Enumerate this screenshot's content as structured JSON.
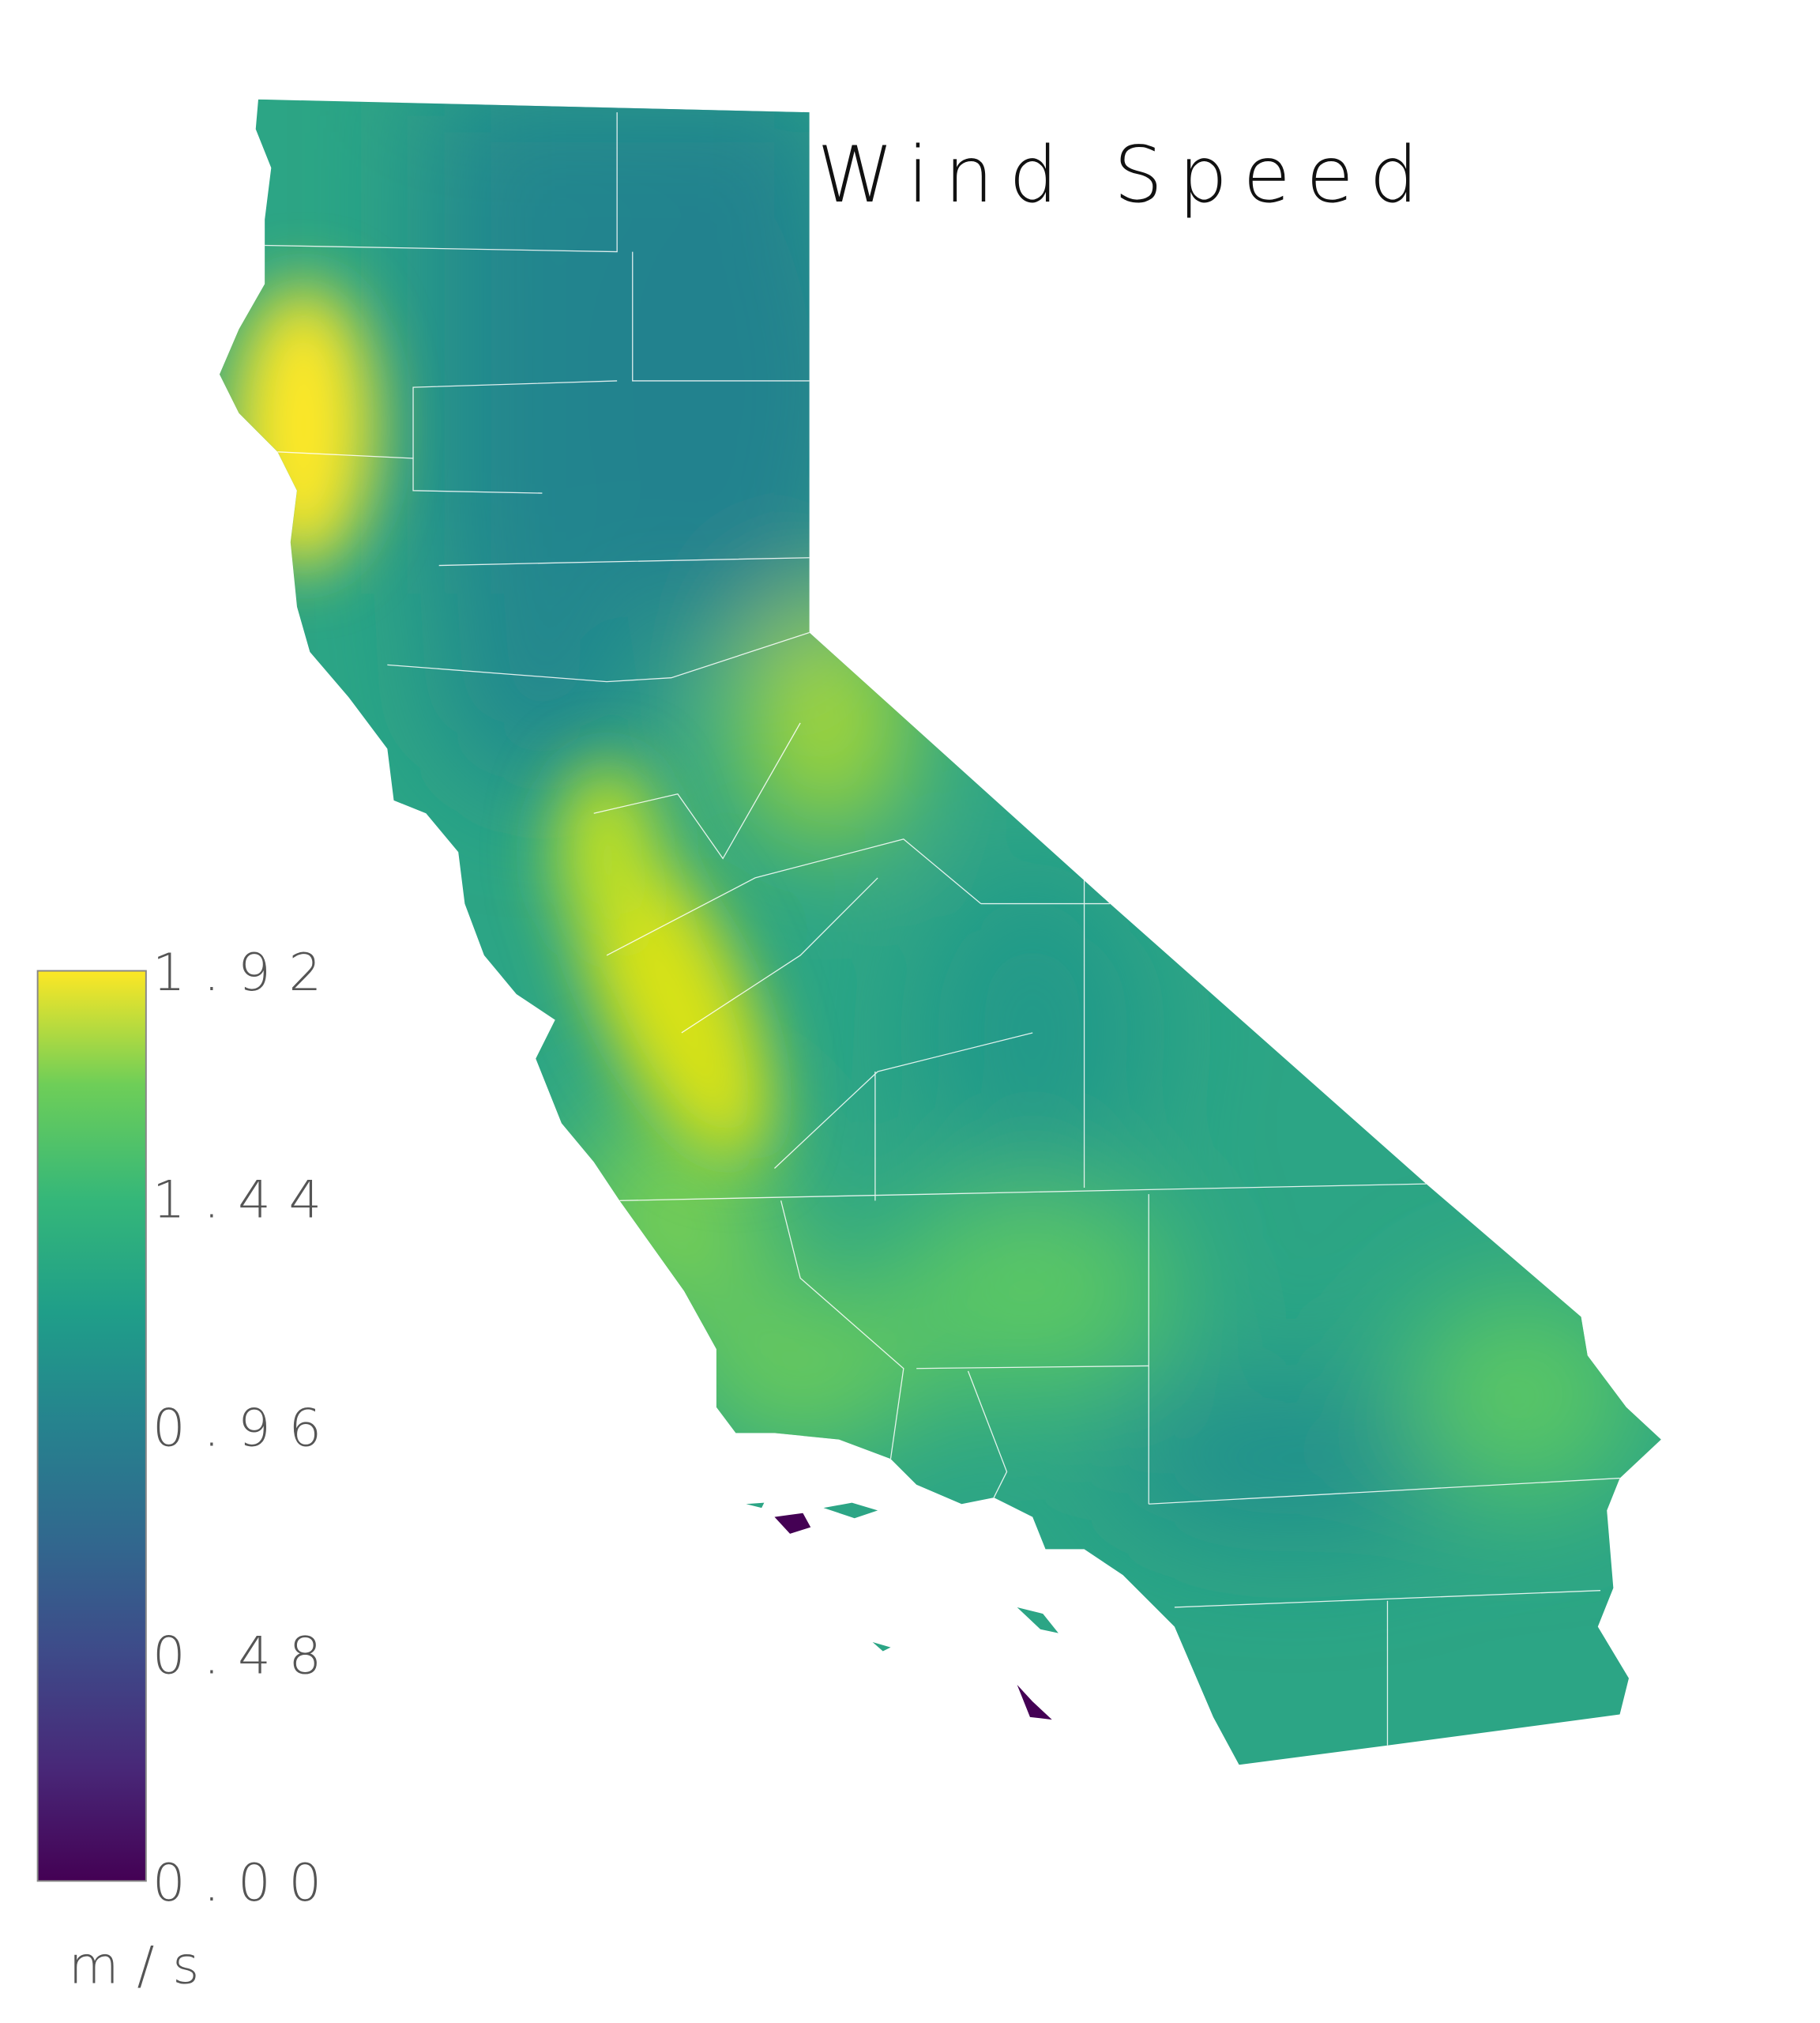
{
  "title": "Wind Speed",
  "chart_data": {
    "type": "heatmap",
    "title": "Wind Speed",
    "region": "California",
    "colormap": "viridis",
    "colorbar": {
      "label": "m/s",
      "range": [
        0.0,
        1.92
      ],
      "ticks": [
        "1.92",
        "1.44",
        "0.96",
        "0.48",
        "0.00"
      ],
      "colors": [
        "#fde725",
        "#5ec962",
        "#21918c",
        "#3b528b",
        "#440154"
      ]
    },
    "county_borders": true,
    "county_border_color": "#ffffff"
  }
}
